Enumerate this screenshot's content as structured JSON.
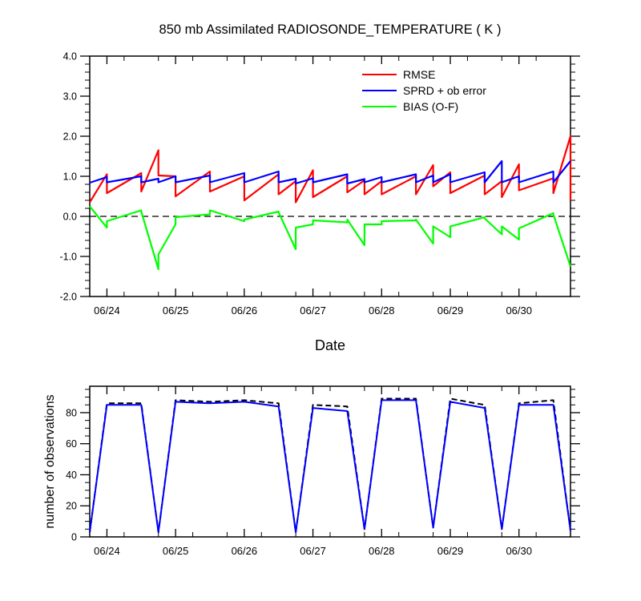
{
  "figure": {
    "title": "850 mb Assimilated RADIOSONDE_TEMPERATURE ( K )",
    "xlabel": "Date",
    "dates": [
      "06/24",
      "06/25",
      "06/26",
      "06/27",
      "06/28",
      "06/29",
      "06/30"
    ]
  },
  "chart_data": [
    {
      "type": "line",
      "title": "850 mb Assimilated RADIOSONDE_TEMPERATURE ( K )",
      "xlabel": "Date",
      "ylabel": "",
      "xlim": [
        0,
        28
      ],
      "ylim": [
        -2.0,
        4.0
      ],
      "yticks": [
        -2.0,
        -1.0,
        0.0,
        1.0,
        2.0,
        3.0,
        4.0
      ],
      "yticklabels": [
        "-2.0",
        "-1.0",
        "0.0",
        "1.0",
        "2.0",
        "3.0",
        "4.0"
      ],
      "xticks": [
        1,
        5,
        9,
        13,
        17,
        21,
        25
      ],
      "xticklabels": [
        "06/24",
        "06/25",
        "06/26",
        "06/27",
        "06/28",
        "06/29",
        "06/30"
      ],
      "zero_line": "dashed",
      "legend_position": "top-right",
      "series": [
        {
          "name": "RMSE",
          "color": "#ff0000",
          "x": [
            0,
            1,
            1,
            3,
            3,
            4,
            4,
            5,
            5,
            7,
            7,
            9,
            9,
            11,
            11,
            12,
            12,
            13,
            13,
            15,
            15,
            16,
            16,
            17,
            17,
            19,
            19,
            20,
            20,
            21,
            21,
            23,
            23,
            24,
            24,
            25,
            25,
            27,
            27,
            28,
            28
          ],
          "values": [
            0.35,
            1.05,
            0.58,
            1.08,
            0.62,
            1.65,
            1.02,
            1.0,
            0.5,
            1.12,
            0.62,
            1.0,
            0.4,
            1.05,
            0.55,
            0.88,
            0.35,
            1.15,
            0.48,
            1.0,
            0.6,
            0.9,
            0.55,
            0.88,
            0.55,
            1.0,
            0.55,
            1.28,
            0.75,
            1.1,
            0.58,
            1.02,
            0.55,
            0.88,
            0.48,
            1.3,
            0.65,
            0.95,
            0.58,
            2.0,
            0.4
          ]
        },
        {
          "name": "SPRD + ob error",
          "color": "#0000ff",
          "x": [
            0,
            1,
            1,
            3,
            3,
            4,
            4,
            5,
            5,
            7,
            7,
            9,
            9,
            11,
            11,
            12,
            12,
            13,
            13,
            15,
            15,
            16,
            16,
            17,
            17,
            19,
            19,
            20,
            20,
            21,
            21,
            23,
            23,
            24,
            24,
            25,
            25,
            27,
            27,
            28
          ],
          "values": [
            0.84,
            0.98,
            0.85,
            1.0,
            0.85,
            0.94,
            0.85,
            1.0,
            0.85,
            1.02,
            0.85,
            1.08,
            0.85,
            1.12,
            0.85,
            0.94,
            0.82,
            0.95,
            0.85,
            1.05,
            0.82,
            0.93,
            0.85,
            0.98,
            0.85,
            1.05,
            0.85,
            1.02,
            0.85,
            1.05,
            0.85,
            1.1,
            0.85,
            1.38,
            0.85,
            1.0,
            0.85,
            1.12,
            0.85,
            1.38
          ]
        },
        {
          "name": "BIAS (O-F)",
          "color": "#00ff00",
          "x": [
            0,
            1,
            1,
            3,
            3,
            4,
            4,
            5,
            5,
            7,
            7,
            9,
            9,
            11,
            11,
            12,
            12,
            13,
            13,
            15,
            15,
            16,
            16,
            17,
            17,
            19,
            19,
            20,
            20,
            21,
            21,
            23,
            23,
            24,
            24,
            25,
            25,
            27,
            27,
            28
          ],
          "values": [
            0.25,
            -0.28,
            -0.12,
            0.15,
            0.12,
            -1.32,
            -0.95,
            -0.2,
            -0.02,
            0.05,
            0.15,
            -0.12,
            -0.08,
            0.12,
            0.1,
            -0.82,
            -0.28,
            -0.2,
            -0.1,
            -0.15,
            -0.08,
            -0.72,
            -0.2,
            -0.2,
            -0.12,
            -0.1,
            -0.08,
            -0.68,
            -0.25,
            -0.52,
            -0.25,
            -0.02,
            -0.05,
            -0.45,
            -0.25,
            -0.58,
            -0.3,
            0.08,
            0.05,
            -1.25
          ]
        }
      ]
    },
    {
      "type": "line",
      "title": "",
      "xlabel": "",
      "ylabel": "number of observations",
      "xlim": [
        0,
        28
      ],
      "ylim": [
        0,
        97
      ],
      "yticks": [
        0,
        20,
        40,
        60,
        80
      ],
      "yticklabels": [
        "0",
        "20",
        "40",
        "60",
        "80"
      ],
      "xticks": [
        1,
        5,
        9,
        13,
        17,
        21,
        25
      ],
      "xticklabels": [
        "06/24",
        "06/25",
        "06/26",
        "06/27",
        "06/28",
        "06/29",
        "06/30"
      ],
      "series": [
        {
          "color": "#000000",
          "dash": "dashed",
          "x": [
            0,
            1,
            3,
            4,
            5,
            7,
            9,
            11,
            12,
            13,
            15,
            16,
            17,
            19,
            20,
            21,
            23,
            24,
            25,
            27,
            28
          ],
          "values": [
            3,
            86,
            86,
            3,
            88,
            87,
            88,
            86,
            3,
            85,
            84,
            5,
            89,
            89,
            6,
            89,
            85,
            5,
            86,
            88,
            4
          ]
        },
        {
          "color": "#0000ff",
          "dash": "solid",
          "x": [
            0,
            1,
            3,
            4,
            5,
            7,
            9,
            11,
            12,
            13,
            15,
            16,
            17,
            19,
            20,
            21,
            23,
            24,
            25,
            27,
            28
          ],
          "values": [
            3,
            85,
            85,
            3,
            87,
            86,
            87,
            84,
            3,
            83,
            81,
            5,
            88,
            88,
            6,
            87,
            83,
            5,
            85,
            85,
            4
          ]
        }
      ]
    }
  ]
}
